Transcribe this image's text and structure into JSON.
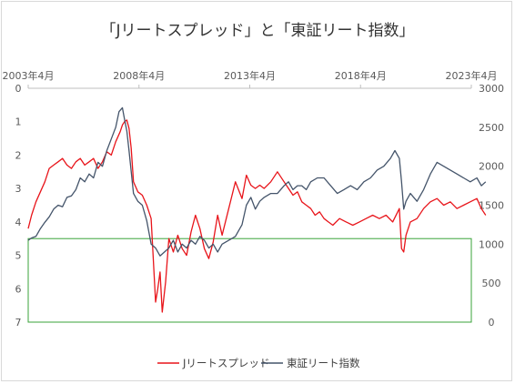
{
  "chart_data": {
    "type": "line",
    "title": "「Jリートスプレッド」と「東証リート指数」",
    "x_tick_labels": [
      "2003年4月",
      "2008年4月",
      "2013年4月",
      "2018年4月",
      "2023年4月"
    ],
    "y_left": {
      "lim": [
        7,
        0
      ],
      "inverted": true,
      "ticks": [
        "0",
        "1",
        "2",
        "3",
        "4",
        "5",
        "6",
        "7"
      ]
    },
    "y_right": {
      "lim": [
        0,
        3000
      ],
      "ticks": [
        "0",
        "500",
        "1000",
        "1500",
        "2000",
        "2500",
        "3000"
      ]
    },
    "highlight_box": {
      "color": "#3aa33a",
      "y_left_range": [
        4.5,
        7
      ]
    },
    "grid": false,
    "legend_position": "bottom",
    "series": [
      {
        "name": "Jリートスプレッド",
        "axis": "left",
        "color": "#e8141a",
        "x": [
          2003.25,
          2003.4,
          2003.6,
          2003.8,
          2004.0,
          2004.2,
          2004.4,
          2004.6,
          2004.8,
          2005.0,
          2005.2,
          2005.4,
          2005.6,
          2005.8,
          2006.0,
          2006.2,
          2006.4,
          2006.6,
          2006.8,
          2007.0,
          2007.2,
          2007.4,
          2007.5,
          2007.6,
          2007.7,
          2007.8,
          2007.9,
          2008.0,
          2008.2,
          2008.4,
          2008.6,
          2008.8,
          2009.0,
          2009.1,
          2009.2,
          2009.3,
          2009.45,
          2009.6,
          2009.8,
          2010.0,
          2010.2,
          2010.4,
          2010.6,
          2010.8,
          2011.0,
          2011.2,
          2011.4,
          2011.6,
          2011.8,
          2012.0,
          2012.3,
          2012.6,
          2012.9,
          2013.1,
          2013.3,
          2013.5,
          2013.7,
          2013.9,
          2014.2,
          2014.5,
          2014.8,
          2015.0,
          2015.2,
          2015.4,
          2015.6,
          2015.8,
          2016.0,
          2016.2,
          2016.4,
          2016.6,
          2016.8,
          2017.0,
          2017.3,
          2017.6,
          2017.9,
          2018.2,
          2018.5,
          2018.8,
          2019.1,
          2019.4,
          2019.7,
          2020.0,
          2020.1,
          2020.2,
          2020.3,
          2020.5,
          2020.8,
          2021.1,
          2021.4,
          2021.7,
          2022.0,
          2022.3,
          2022.6,
          2022.9,
          2023.2,
          2023.5,
          2023.7,
          2023.9
        ],
        "values": [
          4.2,
          3.8,
          3.4,
          3.1,
          2.8,
          2.4,
          2.3,
          2.2,
          2.1,
          2.3,
          2.4,
          2.2,
          2.1,
          2.3,
          2.2,
          2.1,
          2.4,
          2.2,
          1.9,
          2.0,
          1.6,
          1.3,
          1.1,
          1.0,
          0.95,
          1.2,
          1.8,
          2.8,
          3.1,
          3.2,
          3.5,
          3.9,
          6.4,
          6.0,
          5.5,
          6.7,
          5.8,
          4.5,
          4.9,
          4.4,
          4.8,
          5.0,
          4.3,
          3.8,
          4.2,
          4.8,
          5.1,
          4.6,
          3.8,
          4.4,
          3.6,
          2.8,
          3.3,
          2.6,
          2.9,
          3.0,
          2.9,
          3.0,
          2.8,
          2.5,
          2.8,
          3.0,
          3.2,
          3.1,
          3.4,
          3.5,
          3.6,
          3.8,
          3.7,
          3.9,
          4.0,
          4.1,
          3.9,
          4.0,
          4.1,
          4.0,
          3.9,
          3.8,
          3.9,
          3.8,
          4.0,
          3.6,
          4.8,
          4.9,
          4.4,
          4.0,
          3.9,
          3.6,
          3.4,
          3.3,
          3.5,
          3.4,
          3.6,
          3.5,
          3.4,
          3.3,
          3.6,
          3.8
        ]
      },
      {
        "name": "東証リート指数",
        "axis": "right",
        "color": "#44546a",
        "x": [
          2003.25,
          2003.4,
          2003.6,
          2003.8,
          2004.0,
          2004.2,
          2004.4,
          2004.6,
          2004.8,
          2005.0,
          2005.2,
          2005.4,
          2005.6,
          2005.8,
          2006.0,
          2006.2,
          2006.4,
          2006.6,
          2006.8,
          2007.0,
          2007.2,
          2007.35,
          2007.5,
          2007.6,
          2007.7,
          2007.8,
          2008.0,
          2008.2,
          2008.4,
          2008.6,
          2008.8,
          2009.0,
          2009.2,
          2009.4,
          2009.6,
          2009.8,
          2010.0,
          2010.2,
          2010.4,
          2010.6,
          2010.8,
          2011.0,
          2011.2,
          2011.4,
          2011.6,
          2011.8,
          2012.0,
          2012.3,
          2012.6,
          2012.9,
          2013.1,
          2013.3,
          2013.5,
          2013.7,
          2013.9,
          2014.2,
          2014.5,
          2014.8,
          2015.0,
          2015.2,
          2015.4,
          2015.6,
          2015.8,
          2016.0,
          2016.3,
          2016.6,
          2016.9,
          2017.2,
          2017.5,
          2017.8,
          2018.1,
          2018.4,
          2018.7,
          2019.0,
          2019.3,
          2019.6,
          2019.8,
          2020.0,
          2020.1,
          2020.2,
          2020.3,
          2020.5,
          2020.8,
          2021.1,
          2021.4,
          2021.7,
          2022.0,
          2022.3,
          2022.6,
          2022.9,
          2023.2,
          2023.5,
          2023.7,
          2023.9
        ],
        "values": [
          1050,
          1080,
          1100,
          1200,
          1280,
          1350,
          1450,
          1500,
          1480,
          1600,
          1620,
          1700,
          1850,
          1800,
          1900,
          1850,
          2050,
          2000,
          2200,
          2350,
          2500,
          2700,
          2750,
          2600,
          2450,
          2200,
          1650,
          1550,
          1500,
          1300,
          1000,
          950,
          850,
          900,
          950,
          1050,
          900,
          1000,
          950,
          1050,
          1000,
          1100,
          1050,
          950,
          1000,
          900,
          1000,
          1050,
          1100,
          1250,
          1500,
          1600,
          1450,
          1550,
          1600,
          1650,
          1650,
          1750,
          1800,
          1700,
          1750,
          1750,
          1700,
          1800,
          1850,
          1850,
          1750,
          1650,
          1700,
          1750,
          1700,
          1800,
          1850,
          1950,
          2000,
          2100,
          2200,
          2100,
          1800,
          1450,
          1550,
          1650,
          1550,
          1700,
          1900,
          2050,
          2000,
          1950,
          1900,
          1850,
          1800,
          1850,
          1750,
          1800
        ]
      }
    ]
  }
}
